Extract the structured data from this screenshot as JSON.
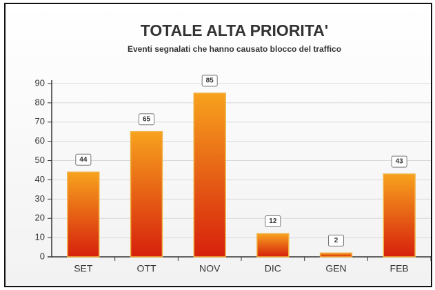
{
  "chart_data": {
    "type": "bar",
    "title": "TOTALE ALTA PRIORITA'",
    "subtitle": "Eventi segnalati che hanno causato blocco del traffico",
    "categories": [
      "SET",
      "OTT",
      "NOV",
      "DIC",
      "GEN",
      "FEB"
    ],
    "values": [
      44,
      65,
      85,
      12,
      2,
      43
    ],
    "color": "#e8501a",
    "ylim": [
      0,
      90
    ],
    "yticks": [
      0,
      10,
      20,
      30,
      40,
      50,
      60,
      70,
      80,
      90
    ],
    "grid": true
  }
}
